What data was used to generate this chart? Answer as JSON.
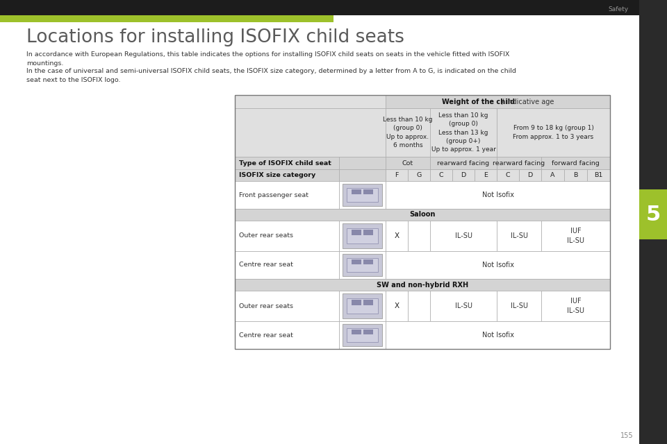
{
  "page_title": "Locations for installing ISOFIX child seats",
  "safety_label": "Safety",
  "page_number": "155",
  "body_text_1": "In accordance with European Regulations, this table indicates the options for installing ISOFIX child seats on seats in the vehicle fitted with ISOFIX\nmountings.",
  "body_text_2": "In the case of universal and semi-universal ISOFIX child seats, the ISOFIX size category, determined by a letter from A to G, is indicated on the child\nseat next to the ISOFIX logo.",
  "bg_color": "#ffffff",
  "green_bar_color": "#9dc12b",
  "side_tab_color": "#9dc12b",
  "weight_header_bold": "Weight of the child",
  "weight_header_normal": " / indicative age",
  "col1_header": "Less than 10 kg\n(group 0)\nUp to approx.\n6 months",
  "col2_header": "Less than 10 kg\n(group 0)\nLess than 13 kg\n(group 0+)\nUp to approx. 1 year",
  "col3_header": "From 9 to 18 kg (group 1)\nFrom approx. 1 to 3 years",
  "type_label": "Type of ISOFIX child seat",
  "size_label": "ISOFIX size category",
  "cot_label": "Cot",
  "rearward1_label": "rearward facing",
  "rearward2_label": "rearward facing",
  "forward_label": "forward facing",
  "size_cats": [
    "F",
    "G",
    "C",
    "D",
    "E",
    "C",
    "D",
    "A",
    "B",
    "B1"
  ],
  "front_seat_label": "Front passenger seat",
  "front_seat_value": "Not Isofix",
  "saloon_label": "Saloon",
  "sw_label": "SW and non-hybrid RXH",
  "outer_rear_label": "Outer rear seats",
  "centre_rear_label": "Centre rear seat",
  "outer_x": "X",
  "outer_rw1": "IL-SU",
  "outer_rw2": "IL-SU",
  "outer_fw": "IUF\nIL-SU",
  "centre_value": "Not Isofix",
  "bold_A": "A",
  "bold_G": "G"
}
